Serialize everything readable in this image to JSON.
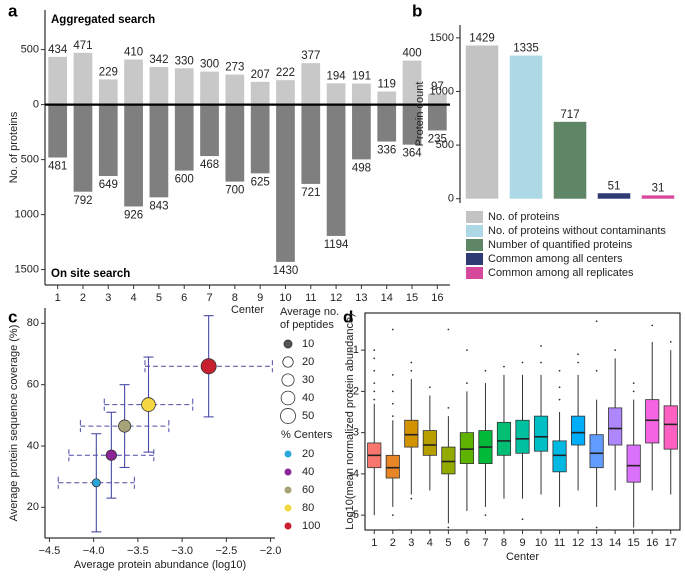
{
  "chart_data": [
    {
      "type": "bar",
      "panel": "a",
      "y_label": "No. of proteins",
      "x_label": "Center",
      "categories": [
        "1",
        "2",
        "3",
        "4",
        "5",
        "6",
        "7",
        "8",
        "9",
        "10",
        "11",
        "12",
        "13",
        "14",
        "15",
        "16"
      ],
      "series": [
        {
          "name": "Aggregated search",
          "color": "#c8c8c8",
          "values": [
            434,
            471,
            229,
            410,
            342,
            330,
            300,
            273,
            207,
            222,
            377,
            194,
            191,
            119,
            400,
            97
          ]
        },
        {
          "name": "On site search",
          "color": "#7f7f7f",
          "values": [
            -481,
            -792,
            -649,
            -926,
            -843,
            -600,
            -468,
            -700,
            -625,
            -1430,
            -721,
            -1194,
            -498,
            -336,
            -364,
            -235
          ],
          "value_labels": [
            "481",
            "792",
            "649",
            "926",
            "843",
            "600",
            "468",
            "700",
            "625",
            "1430",
            "721",
            "1194",
            "498",
            "336",
            "364",
            "235"
          ]
        }
      ],
      "ylim": [
        -1640,
        860
      ],
      "yticks": [
        500,
        0,
        {
          "value": -500,
          "label": "500"
        },
        {
          "value": -1000,
          "label": "1000"
        },
        {
          "value": -1500,
          "label": "1500"
        }
      ],
      "zero_line": true
    },
    {
      "type": "bar",
      "panel": "b",
      "y_label": "Protein count",
      "categories": [
        "No. of proteins",
        "No. of proteins without contaminants",
        "Number of quantified proteins",
        "Common among all centers",
        "Common among all replicates"
      ],
      "values": [
        1429,
        1335,
        717,
        51,
        31
      ],
      "colors": [
        "#c3c3c3",
        "#add8e6",
        "#5e8566",
        "#2f3a73",
        "#d6489b"
      ],
      "ylim": [
        -40,
        1620
      ],
      "yticks": [
        0,
        500,
        1000,
        1500
      ],
      "legend": "bottom"
    },
    {
      "type": "scatter",
      "panel": "c",
      "y_label": "Average protein sequence coverage (%)",
      "x_label": "Average protein abundance (log10)",
      "x": [
        -3.97,
        -3.8,
        -3.65,
        -3.38,
        -2.7
      ],
      "y": [
        28,
        37,
        46.5,
        53.5,
        66
      ],
      "xerr": [
        0.43,
        0.48,
        0.5,
        0.5,
        0.72
      ],
      "yerr": [
        16,
        14,
        13.5,
        15.5,
        16.5
      ],
      "size": [
        10,
        20,
        30,
        40,
        50
      ],
      "centers": [
        20,
        40,
        60,
        80,
        100
      ],
      "error_color": "#4a4aa8",
      "xlim": [
        -4.55,
        -1.95
      ],
      "ylim": [
        10,
        85
      ],
      "xticks": [
        {
          "value": -4.5,
          "label": "−4.5"
        },
        {
          "value": -4.0,
          "label": "−4.0"
        },
        {
          "value": -3.5,
          "label": "−3.5"
        },
        {
          "value": -3.0,
          "label": "−3.0"
        },
        {
          "value": -2.5,
          "label": "−2.5"
        },
        {
          "value": -2.0,
          "label": "−2.0"
        }
      ],
      "yticks": [
        20,
        40,
        60,
        80
      ],
      "size_legend": {
        "title": "Average no. of peptides",
        "values": [
          10,
          20,
          30,
          40,
          50
        ]
      },
      "color_legend": {
        "title": "% Centers",
        "values": [
          20,
          40,
          60,
          80,
          100
        ],
        "colors": [
          "#2aa7dc",
          "#8e2596",
          "#a6a37a",
          "#f5d742",
          "#c8202f"
        ]
      }
    },
    {
      "type": "box",
      "panel": "d",
      "y_label": "Log10(mean normalized protein abundance)",
      "x_label": "Center",
      "categories": [
        "1",
        "2",
        "3",
        "4",
        "5",
        "6",
        "7",
        "8",
        "9",
        "10",
        "11",
        "12",
        "13",
        "14",
        "15",
        "16",
        "17"
      ],
      "whisker_low": [
        -5.0,
        -4.8,
        -4.5,
        -4.4,
        -5.2,
        -4.9,
        -4.8,
        -4.6,
        -4.6,
        -4.5,
        -4.8,
        -4.4,
        -4.8,
        -4.4,
        -5.3,
        -4.4,
        -4.5
      ],
      "q1": [
        -3.85,
        -4.1,
        -3.35,
        -3.55,
        -4.0,
        -3.75,
        -3.75,
        -3.55,
        -3.5,
        -3.45,
        -3.95,
        -3.3,
        -3.85,
        -3.3,
        -4.2,
        -3.25,
        -3.4
      ],
      "median": [
        -3.55,
        -3.85,
        -3.05,
        -3.3,
        -3.7,
        -3.4,
        -3.35,
        -3.2,
        -3.15,
        -3.1,
        -3.55,
        -3.0,
        -3.5,
        -2.9,
        -3.8,
        -2.7,
        -2.8
      ],
      "q3": [
        -3.25,
        -3.55,
        -2.7,
        -2.95,
        -3.35,
        -3.0,
        -2.95,
        -2.75,
        -2.7,
        -2.6,
        -3.2,
        -2.6,
        -3.05,
        -2.4,
        -3.3,
        -2.2,
        -2.35
      ],
      "whisker_high": [
        -2.3,
        -2.7,
        -1.7,
        -2.1,
        -2.6,
        -2.0,
        -1.8,
        -1.6,
        -1.6,
        -1.6,
        -2.5,
        -1.6,
        -2.2,
        -1.2,
        -2.2,
        -0.8,
        -1.0
      ],
      "outliers": [
        [
          -2.2,
          -2.0,
          -1.8,
          -1.5,
          -1.2,
          -1.0
        ],
        [
          -2.6,
          -2.3,
          -2.0,
          -1.6,
          -0.5,
          -5.0
        ],
        [
          -1.5,
          -1.3,
          -4.6
        ],
        [
          -1.9
        ],
        [
          -2.4,
          -0.5,
          -5.3
        ],
        [
          -1.8,
          -1.0
        ],
        [
          -1.5,
          -5.0
        ],
        [
          -1.4
        ],
        [
          -1.3,
          -5.1
        ],
        [
          -1.3,
          -0.9
        ],
        [
          -2.2,
          -1.9,
          -1.5
        ],
        [
          -1.3,
          -1.1
        ],
        [
          -1.5,
          -0.3,
          -5.3
        ],
        [
          -1.0
        ],
        [
          -2.0,
          -1.8
        ],
        [
          -0.4
        ],
        [
          -0.8
        ]
      ],
      "colors": [
        "#F8766D",
        "#E88526",
        "#D39200",
        "#B79F00",
        "#93AA00",
        "#5EB300",
        "#00BA38",
        "#00BF74",
        "#00C19F",
        "#00BFC4",
        "#00B9E3",
        "#00ADFA",
        "#619CFF",
        "#AE87FF",
        "#DB72FB",
        "#F564E3",
        "#FF61C3"
      ],
      "ylim": [
        -5.36,
        -0.1
      ],
      "yticks": [
        -5,
        -4,
        -3,
        -2,
        -1
      ]
    }
  ]
}
